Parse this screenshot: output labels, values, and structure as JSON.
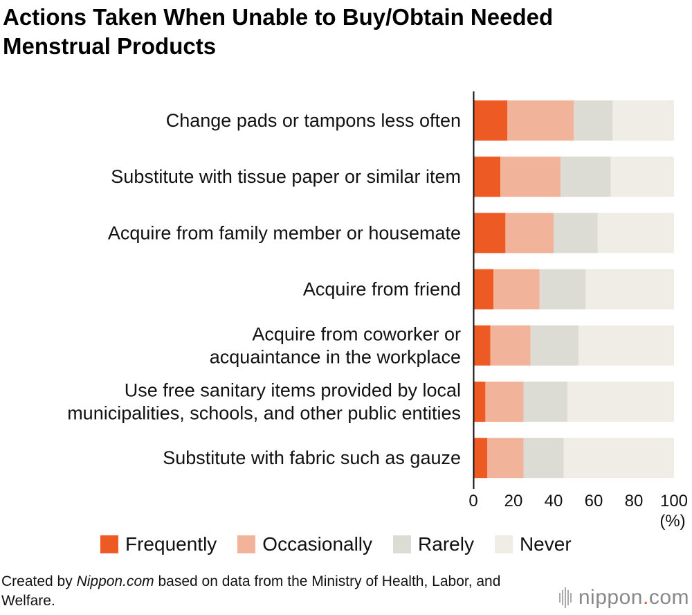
{
  "title": "Actions Taken When Unable to Buy/Obtain Needed\nMenstrual Products",
  "credit": {
    "prefix": "Created by ",
    "source": "Nippon.com",
    "suffix": " based on data from the Ministry of Health, Labor, and Welfare."
  },
  "logo": {
    "name": "nippon",
    "dot": ".",
    "tld": "com",
    "icon": "barcode-icon"
  },
  "chart_data": {
    "type": "bar",
    "orientation": "horizontal",
    "stacked": true,
    "categories": [
      [
        "Change pads or tampons less often"
      ],
      [
        "Substitute with tissue paper or similar item"
      ],
      [
        "Acquire from family member or housemate"
      ],
      [
        "Acquire from friend"
      ],
      [
        "Acquire from coworker or",
        "acquaintance in the workplace"
      ],
      [
        "Use free sanitary items provided by local",
        "municipalities, schools, and other public entities"
      ],
      [
        "Substitute with fabric such as gauze"
      ]
    ],
    "series": [
      {
        "name": "Frequently",
        "color": "#ee5a24",
        "values": [
          17,
          13.5,
          16,
          10,
          8.5,
          6,
          7
        ]
      },
      {
        "name": "Occasionally",
        "color": "#f2b39b",
        "values": [
          33,
          30,
          24,
          23,
          20,
          19,
          18
        ]
      },
      {
        "name": "Rarely",
        "color": "#dcdcd4",
        "values": [
          19.5,
          25,
          22,
          23,
          24,
          22,
          20
        ]
      },
      {
        "name": "Never",
        "color": "#f0ede6",
        "values": [
          30.5,
          31.5,
          38,
          44,
          47.5,
          53,
          55
        ]
      }
    ],
    "xlim": [
      0,
      100
    ],
    "xticks": [
      0,
      20,
      40,
      60,
      80,
      100
    ],
    "xunit": "(%)",
    "grid": false,
    "legend_position": "bottom"
  }
}
